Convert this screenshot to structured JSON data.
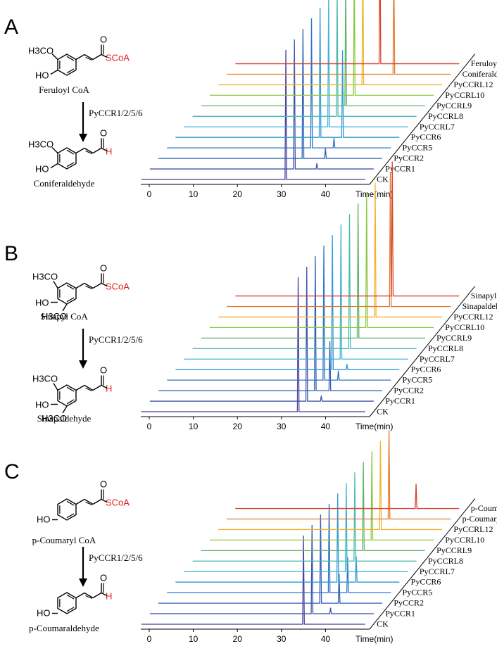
{
  "panels": [
    {
      "label": "A",
      "substrate": {
        "name": "Feruloyl CoA",
        "groups": [
          "H3CO",
          "HO"
        ],
        "end_group": "SCoA"
      },
      "product": {
        "name": "Coniferaldehyde",
        "groups": [
          "H3CO",
          "HO"
        ],
        "end_group": "H"
      },
      "enzyme": "PyCCR1/2/5/6"
    },
    {
      "label": "B",
      "substrate": {
        "name": "Sinapyl CoA",
        "groups": [
          "H3CO",
          "HO",
          "H3CO"
        ],
        "end_group": "SCoA"
      },
      "product": {
        "name": "Sinapaldehyde",
        "groups": [
          "H3CO",
          "HO",
          "H3CO"
        ],
        "end_group": "H"
      },
      "enzyme": "PyCCR1/2/5/6"
    },
    {
      "label": "C",
      "substrate": {
        "name": "p-Coumaryl CoA",
        "groups": [
          "HO"
        ],
        "end_group": "SCoA"
      },
      "product": {
        "name": "p-Coumaraldehyde",
        "groups": [
          "HO"
        ],
        "end_group": "H"
      },
      "enzyme": "PyCCR1/2/5/6"
    }
  ],
  "chart_data": [
    {
      "type": "line",
      "title": "",
      "xlabel": "Time(min)",
      "ylabel": "",
      "xlim": [
        0,
        50
      ],
      "xticks": [
        0,
        10,
        20,
        30,
        40
      ],
      "grid": false,
      "series": [
        {
          "name": "CK",
          "color": "#4a3f9e",
          "peaks": [
            {
              "t": 31.0,
              "h": 0.92
            }
          ]
        },
        {
          "name": "PyCCR1",
          "color": "#3f55a8",
          "peaks": [
            {
              "t": 31.0,
              "h": 0.92
            },
            {
              "t": 36.1,
              "h": 0.04
            }
          ]
        },
        {
          "name": "PyCCR2",
          "color": "#2f5fb5",
          "peaks": [
            {
              "t": 31.0,
              "h": 0.92
            },
            {
              "t": 36.1,
              "h": 0.07
            }
          ]
        },
        {
          "name": "PyCCR5",
          "color": "#2e74c0",
          "peaks": [
            {
              "t": 31.0,
              "h": 0.92
            },
            {
              "t": 36.1,
              "h": 0.07
            }
          ]
        },
        {
          "name": "PyCCR6",
          "color": "#2f9ad6",
          "peaks": [
            {
              "t": 31.0,
              "h": 0.92
            },
            {
              "t": 36.1,
              "h": 0.62
            }
          ]
        },
        {
          "name": "PyCCRL7",
          "color": "#3db3d8",
          "peaks": [
            {
              "t": 31.0,
              "h": 0.92
            }
          ]
        },
        {
          "name": "PyCCRL8",
          "color": "#4bbcae",
          "peaks": [
            {
              "t": 31.0,
              "h": 0.92
            }
          ]
        },
        {
          "name": "PyCCRL9",
          "color": "#5db36a",
          "peaks": [
            {
              "t": 31.0,
              "h": 0.92
            }
          ]
        },
        {
          "name": "PyCCRL10",
          "color": "#8cc63f",
          "peaks": [
            {
              "t": 31.0,
              "h": 0.92
            }
          ]
        },
        {
          "name": "PyCCRL12",
          "color": "#f0b429",
          "peaks": [
            {
              "t": 31.0,
              "h": 0.92
            }
          ]
        },
        {
          "name": "Coniferaldehyde",
          "color": "#e07a2e",
          "peaks": [
            {
              "t": 36.1,
              "h": 0.76
            }
          ]
        },
        {
          "name": "Feruloyl coenzyme A",
          "color": "#d9432f",
          "peaks": [
            {
              "t": 31.0,
              "h": 0.92
            }
          ]
        }
      ]
    },
    {
      "type": "line",
      "title": "",
      "xlabel": "Time(min)",
      "ylabel": "",
      "xlim": [
        0,
        50
      ],
      "xticks": [
        0,
        10,
        20,
        30,
        40
      ],
      "grid": false,
      "series": [
        {
          "name": "CK",
          "color": "#4a3f9e",
          "peaks": [
            {
              "t": 33.8,
              "h": 0.98
            }
          ]
        },
        {
          "name": "PyCCR1",
          "color": "#3f55a8",
          "peaks": [
            {
              "t": 33.8,
              "h": 0.98
            },
            {
              "t": 37.1,
              "h": 0.04
            }
          ]
        },
        {
          "name": "PyCCR2",
          "color": "#2f5fb5",
          "peaks": [
            {
              "t": 33.8,
              "h": 0.98
            },
            {
              "t": 37.1,
              "h": 0.36
            }
          ]
        },
        {
          "name": "PyCCR5",
          "color": "#2e74c0",
          "peaks": [
            {
              "t": 33.8,
              "h": 0.98
            },
            {
              "t": 37.1,
              "h": 0.07
            }
          ]
        },
        {
          "name": "PyCCR6",
          "color": "#2f9ad6",
          "peaks": [
            {
              "t": 33.8,
              "h": 0.98
            },
            {
              "t": 37.1,
              "h": 0.04
            }
          ]
        },
        {
          "name": "PyCCRL7",
          "color": "#3db3d8",
          "peaks": [
            {
              "t": 33.8,
              "h": 0.98
            }
          ]
        },
        {
          "name": "PyCCRL8",
          "color": "#4bbcae",
          "peaks": [
            {
              "t": 33.8,
              "h": 0.98
            }
          ]
        },
        {
          "name": "PyCCRL9",
          "color": "#5db36a",
          "peaks": [
            {
              "t": 33.8,
              "h": 0.98
            }
          ]
        },
        {
          "name": "PyCCRL10",
          "color": "#8cc63f",
          "peaks": [
            {
              "t": 33.8,
              "h": 0.98
            }
          ]
        },
        {
          "name": "PyCCRL12",
          "color": "#f0b429",
          "peaks": [
            {
              "t": 33.8,
              "h": 0.98
            }
          ]
        },
        {
          "name": "Sinapaldehyde",
          "color": "#e07a2e",
          "peaks": [
            {
              "t": 35.3,
              "h": 0.98
            }
          ]
        },
        {
          "name": "Sinapyl coenzyme A",
          "color": "#d9432f",
          "peaks": [
            {
              "t": 33.8,
              "h": 0.98
            }
          ]
        }
      ]
    },
    {
      "type": "line",
      "title": "",
      "xlabel": "Time(min)",
      "ylabel": "",
      "xlim": [
        0,
        50
      ],
      "xticks": [
        0,
        10,
        20,
        30,
        40
      ],
      "grid": false,
      "series": [
        {
          "name": "CK",
          "color": "#4a3f9e",
          "peaks": [
            {
              "t": 35.0,
              "h": 0.9
            }
          ]
        },
        {
          "name": "PyCCR1",
          "color": "#3f55a8",
          "peaks": [
            {
              "t": 35.0,
              "h": 0.9
            },
            {
              "t": 39.2,
              "h": 0.06
            }
          ]
        },
        {
          "name": "PyCCR2",
          "color": "#2f5fb5",
          "peaks": [
            {
              "t": 35.0,
              "h": 0.9
            },
            {
              "t": 39.2,
              "h": 0.3
            }
          ]
        },
        {
          "name": "PyCCR5",
          "color": "#2e74c0",
          "peaks": [
            {
              "t": 35.0,
              "h": 0.9
            },
            {
              "t": 39.2,
              "h": 0.36
            }
          ]
        },
        {
          "name": "PyCCR6",
          "color": "#2f9ad6",
          "peaks": [
            {
              "t": 35.0,
              "h": 0.9
            },
            {
              "t": 39.2,
              "h": 0.26
            }
          ]
        },
        {
          "name": "PyCCRL7",
          "color": "#3db3d8",
          "peaks": [
            {
              "t": 35.0,
              "h": 0.9
            }
          ]
        },
        {
          "name": "PyCCRL8",
          "color": "#4bbcae",
          "peaks": [
            {
              "t": 35.0,
              "h": 0.9
            }
          ]
        },
        {
          "name": "PyCCRL9",
          "color": "#5db36a",
          "peaks": [
            {
              "t": 35.0,
              "h": 0.9
            }
          ]
        },
        {
          "name": "PyCCRL10",
          "color": "#8cc63f",
          "peaks": [
            {
              "t": 35.0,
              "h": 0.9
            }
          ]
        },
        {
          "name": "PyCCRL12",
          "color": "#f0b429",
          "peaks": [
            {
              "t": 35.0,
              "h": 0.9
            }
          ]
        },
        {
          "name": "p-Coumaryl coenzyme A",
          "color": "#e07a2e",
          "peaks": [
            {
              "t": 35.0,
              "h": 0.9
            }
          ]
        },
        {
          "name": "p-Coumaraldehyde",
          "color": "#d9432f",
          "peaks": [
            {
              "t": 39.2,
              "h": 0.25
            }
          ]
        }
      ]
    }
  ]
}
